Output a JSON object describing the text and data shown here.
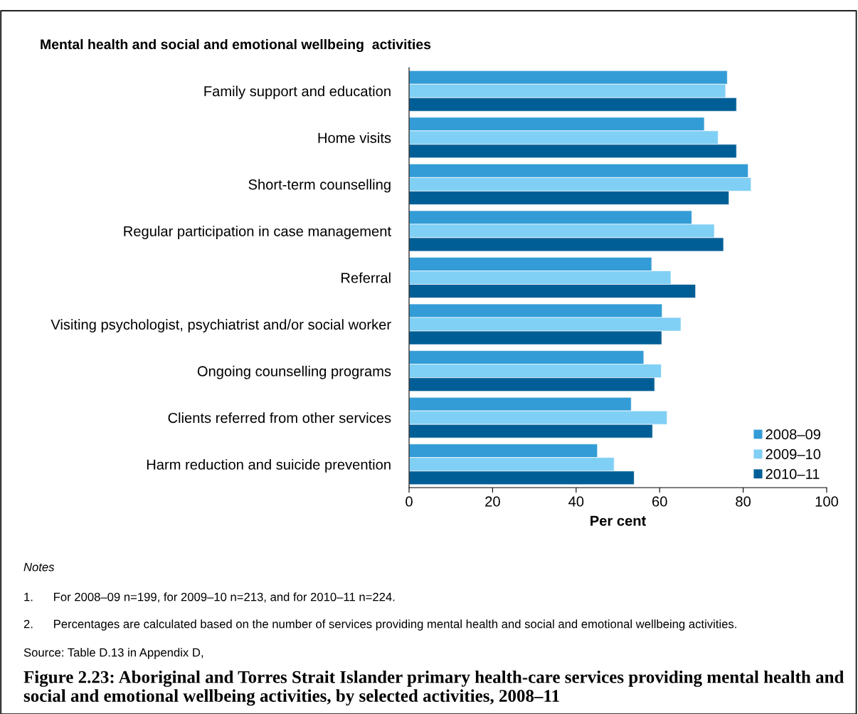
{
  "chart_data": {
    "type": "bar",
    "orientation": "horizontal",
    "title": "Mental health and social and emotional wellbeing  activities",
    "xlabel": "Per cent",
    "categories": [
      "Family support and education",
      "Home visits",
      "Short-term counselling",
      "Regular participation in case management",
      "Referral",
      "Visiting psychologist, psychiatrist and/or social worker",
      "Ongoing counselling programs",
      "Clients referred from other services",
      "Harm reduction and suicide prevention"
    ],
    "series": [
      {
        "name": "2008–09",
        "color": "#339cd6",
        "values": [
          76.2,
          70.7,
          81.2,
          67.7,
          58.1,
          60.6,
          56.2,
          53.2,
          45.1
        ]
      },
      {
        "name": "2009–10",
        "color": "#80cff5",
        "values": [
          75.8,
          74.0,
          81.9,
          73.1,
          62.7,
          65.1,
          60.4,
          61.8,
          49.1
        ]
      },
      {
        "name": "2010–11",
        "color": "#005e96",
        "values": [
          78.4,
          78.4,
          76.6,
          75.3,
          68.6,
          60.5,
          58.8,
          58.3,
          53.9
        ]
      }
    ],
    "xlim": [
      0,
      100
    ],
    "xticks": [
      0,
      20,
      40,
      60,
      80,
      100
    ],
    "grid": false,
    "legend": "bottom right",
    "annotations": [
      "Notes",
      "1.      For 2008–09 n=199, for 2009–10 n=213, and for 2010–11 n=224.",
      "2.      Percentages are calculated based on the number of services providing mental health and social and emotional wellbeing activities.",
      "Source: Table D.13 in Appendix D,",
      "Figure 2.23: Aboriginal and Torres Strait Islander primary health-care services providing mental health and social and emotional wellbeing activities, by selected activities, 2008–11"
    ]
  }
}
